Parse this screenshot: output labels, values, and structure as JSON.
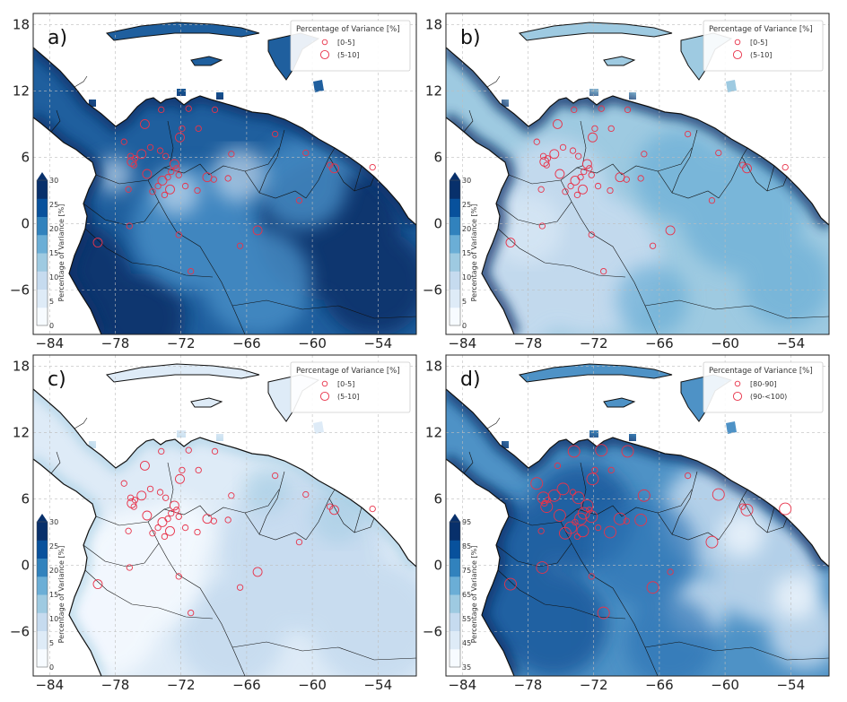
{
  "panels": [
    {
      "label": "a)",
      "scheme": "high",
      "legend": {
        "title": "Percentage of Variance [%]",
        "entries": [
          "[0-5]",
          "(5-10]"
        ]
      },
      "colorbar": {
        "title": "Percentage of Variance [%]",
        "ticks": [
          "30",
          "25",
          "20",
          "15",
          "10",
          "5",
          "0"
        ]
      }
    },
    {
      "label": "b)",
      "scheme": "mid",
      "legend": {
        "title": "Percentage of Variance [%]",
        "entries": [
          "[0-5]",
          "(5-10]"
        ]
      },
      "colorbar": {
        "title": "Percentage of Variance [%]",
        "ticks": [
          "30",
          "25",
          "20",
          "15",
          "10",
          "5",
          "0"
        ]
      }
    },
    {
      "label": "c)",
      "scheme": "low",
      "legend": {
        "title": "Percentage of Variance [%]",
        "entries": [
          "[0-5]",
          "(5-10]"
        ]
      },
      "colorbar": {
        "title": "Percentage of Variance [%]",
        "ticks": [
          "30",
          "25",
          "20",
          "15",
          "10",
          "5",
          "0"
        ]
      }
    },
    {
      "label": "d)",
      "scheme": "d",
      "legend": {
        "title": "Percentage of Variance [%]",
        "entries": [
          "[80-90]",
          "(90-<100)"
        ]
      },
      "colorbar": {
        "title": "Percentage of Variance [%]",
        "ticks": [
          "95",
          "85",
          "75",
          "65",
          "55",
          "45",
          "35"
        ]
      }
    }
  ],
  "axes": {
    "lon_ticks": [
      -84,
      -78,
      -72,
      -66,
      -60,
      -54
    ],
    "lat_ticks": [
      18,
      12,
      6,
      0,
      -6
    ],
    "lon_range": [
      -85.5,
      -50.5
    ],
    "lat_range": [
      -10,
      19
    ]
  },
  "colors": {
    "marker": "#e8334a",
    "grid": "#bdbdbd",
    "coast": "#111111",
    "ocean": "#ffffff"
  },
  "stations": [
    [
      -76.5,
      5.6
    ],
    [
      -76.3,
      5.3
    ],
    [
      -76.6,
      6.1
    ],
    [
      -76.2,
      5.9
    ],
    [
      -75.6,
      6.3
    ],
    [
      -74.8,
      6.9
    ],
    [
      -73.9,
      6.6
    ],
    [
      -73.4,
      6.1
    ],
    [
      -72.6,
      5.4
    ],
    [
      -72.4,
      5.0
    ],
    [
      -72.9,
      4.7
    ],
    [
      -73.2,
      4.2
    ],
    [
      -73.7,
      3.9
    ],
    [
      -74.1,
      3.4
    ],
    [
      -74.6,
      2.9
    ],
    [
      -73.5,
      2.6
    ],
    [
      -73.0,
      3.1
    ],
    [
      -72.2,
      4.4
    ],
    [
      -71.6,
      3.4
    ],
    [
      -70.5,
      3.0
    ],
    [
      -69.6,
      4.2
    ],
    [
      -69.0,
      4.0
    ],
    [
      -67.4,
      6.3
    ],
    [
      -67.7,
      4.1
    ],
    [
      -75.3,
      9.0
    ],
    [
      -73.8,
      10.3
    ],
    [
      -71.3,
      10.4
    ],
    [
      -70.4,
      8.6
    ],
    [
      -72.1,
      7.8
    ],
    [
      -77.2,
      7.4
    ],
    [
      -76.8,
      3.1
    ],
    [
      -76.7,
      -0.2
    ],
    [
      -79.6,
      -1.7
    ],
    [
      -72.2,
      -1.0
    ],
    [
      -71.1,
      -4.3
    ],
    [
      -66.6,
      -2.0
    ],
    [
      -65.0,
      -0.6
    ],
    [
      -61.2,
      2.1
    ],
    [
      -60.6,
      6.4
    ],
    [
      -58.4,
      5.3
    ],
    [
      -58.0,
      5.0
    ],
    [
      -54.5,
      5.1
    ],
    [
      -63.4,
      8.1
    ],
    [
      -68.9,
      10.3
    ],
    [
      -75.1,
      4.5
    ],
    [
      -71.9,
      8.6
    ]
  ]
}
